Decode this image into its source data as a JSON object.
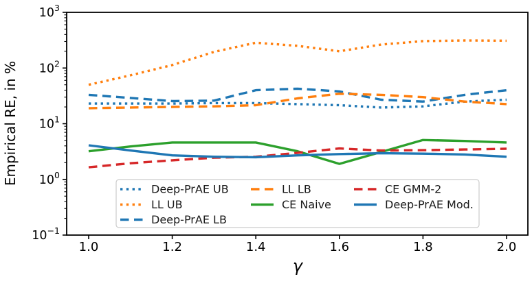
{
  "figure": {
    "background": "#ffffff",
    "axis_color": "#000000",
    "legend_border_color": "#cccccc"
  },
  "chart_data": {
    "type": "line",
    "title": "",
    "xlabel": "γ",
    "ylabel": "Empirical RE, in %",
    "y_scale": "log",
    "ylim": [
      0.1,
      1000
    ],
    "xlim": [
      0.947,
      2.051
    ],
    "grid": false,
    "x": [
      1.0,
      1.1,
      1.2,
      1.3,
      1.4,
      1.5,
      1.6,
      1.7,
      1.8,
      1.9,
      2.0
    ],
    "x_tick_values": [
      1.0,
      1.2,
      1.4,
      1.6,
      1.8,
      2.0
    ],
    "x_tick_labels": [
      "1.0",
      "1.2",
      "1.4",
      "1.6",
      "1.8",
      "2.0"
    ],
    "y_tick_exponents": [
      3,
      2,
      1,
      0,
      -1
    ],
    "y_tick_base": "10",
    "series": [
      {
        "name": "Deep-PrAE UB",
        "color": "#1f77b4",
        "style": "dotted",
        "values": [
          23,
          23,
          23,
          23.5,
          23.5,
          22.5,
          21.5,
          19.5,
          20.5,
          25,
          27
        ]
      },
      {
        "name": "LL UB",
        "color": "#ff7f0e",
        "style": "dotted",
        "values": [
          50,
          74,
          113,
          195,
          285,
          250,
          200,
          264,
          304,
          313,
          309
        ]
      },
      {
        "name": "Deep-PrAE LB",
        "color": "#1f77b4",
        "style": "dashed",
        "values": [
          33,
          29,
          25.5,
          26,
          40,
          42.5,
          38,
          27,
          25,
          33,
          40
        ]
      },
      {
        "name": "LL LB",
        "color": "#ff7f0e",
        "style": "dashed",
        "values": [
          19,
          19.5,
          20,
          20.5,
          21.5,
          28.5,
          34.5,
          33,
          30,
          25,
          22.5
        ]
      },
      {
        "name": "CE Naive",
        "color": "#2ca02c",
        "style": "solid",
        "values": [
          3.2,
          3.9,
          4.6,
          4.6,
          4.6,
          3.2,
          1.9,
          3.1,
          5.1,
          4.9,
          4.6
        ]
      },
      {
        "name": "CE GMM-2",
        "color": "#d62728",
        "style": "dashed",
        "values": [
          1.65,
          1.95,
          2.2,
          2.45,
          2.55,
          3.0,
          3.6,
          3.3,
          3.35,
          3.45,
          3.55
        ]
      },
      {
        "name": "Deep-PrAE Mod.",
        "color": "#1f77b4",
        "style": "solid",
        "values": [
          4.1,
          3.3,
          2.7,
          2.55,
          2.5,
          2.7,
          2.85,
          2.95,
          2.9,
          2.8,
          2.55
        ]
      }
    ],
    "legend": {
      "position": "lower center inside axes",
      "columns": [
        [
          "Deep-PrAE UB",
          "LL UB",
          "Deep-PrAE LB"
        ],
        [
          "LL LB",
          "CE Naive"
        ],
        [
          "CE GMM-2",
          "Deep-PrAE Mod."
        ]
      ]
    }
  }
}
